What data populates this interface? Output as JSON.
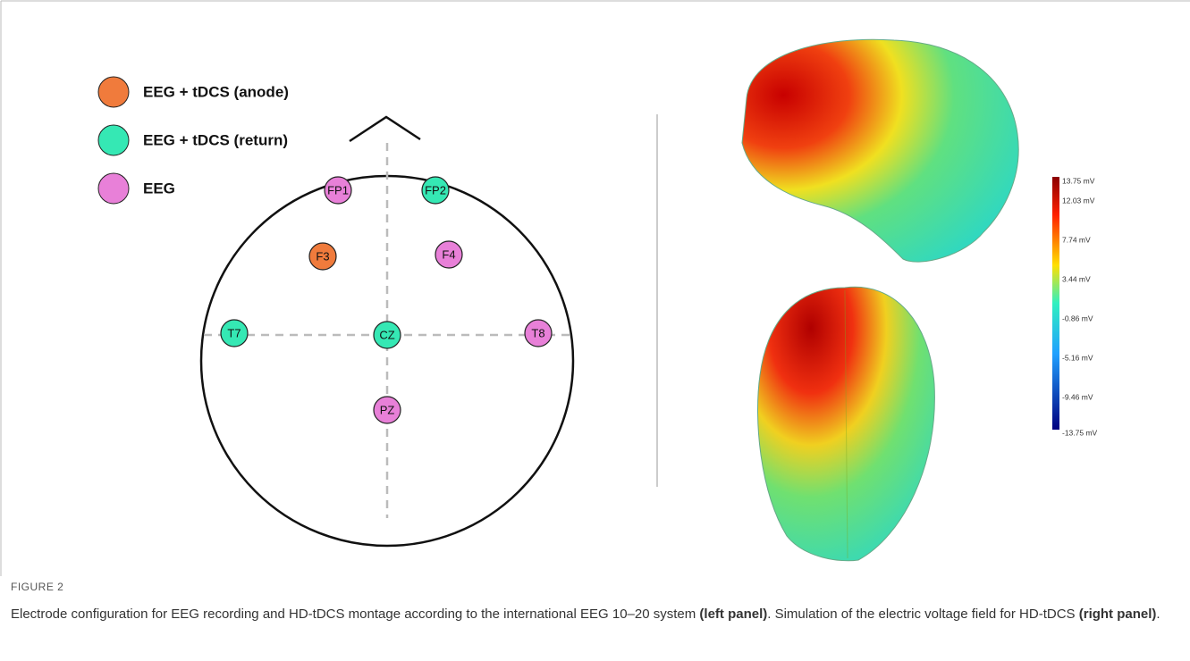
{
  "figure": {
    "legend": [
      {
        "label": "EEG + tDCS (anode)",
        "color": "#f07b3c"
      },
      {
        "label": "EEG + tDCS (return)",
        "color": "#35e8b4"
      },
      {
        "label": "EEG",
        "color": "#e880d8"
      }
    ],
    "electrodes": [
      {
        "label": "FP1",
        "legend": 2
      },
      {
        "label": "FP2",
        "legend": 1
      },
      {
        "label": "F3",
        "legend": 0
      },
      {
        "label": "F4",
        "legend": 2
      },
      {
        "label": "T7",
        "legend": 1
      },
      {
        "label": "CZ",
        "legend": 1
      },
      {
        "label": "T8",
        "legend": 2
      },
      {
        "label": "PZ",
        "legend": 2
      }
    ],
    "colorbar": {
      "ticks": [
        "13.75 mV",
        "12.03 mV",
        "7.74 mV",
        "3.44 mV",
        "-0.86 mV",
        "-5.16 mV",
        "-9.46 mV",
        "-13.75 mV"
      ]
    },
    "caption": {
      "label": "FIGURE 2",
      "parts": [
        {
          "text": "Electrode configuration for EEG recording and HD-tDCS montage according to the international EEG 10–20 system ",
          "bold": false
        },
        {
          "text": "(left panel)",
          "bold": true
        },
        {
          "text": ". Simulation of the electric voltage field for HD-tDCS ",
          "bold": false
        },
        {
          "text": "(right panel)",
          "bold": true
        },
        {
          "text": ".",
          "bold": false
        }
      ]
    }
  }
}
